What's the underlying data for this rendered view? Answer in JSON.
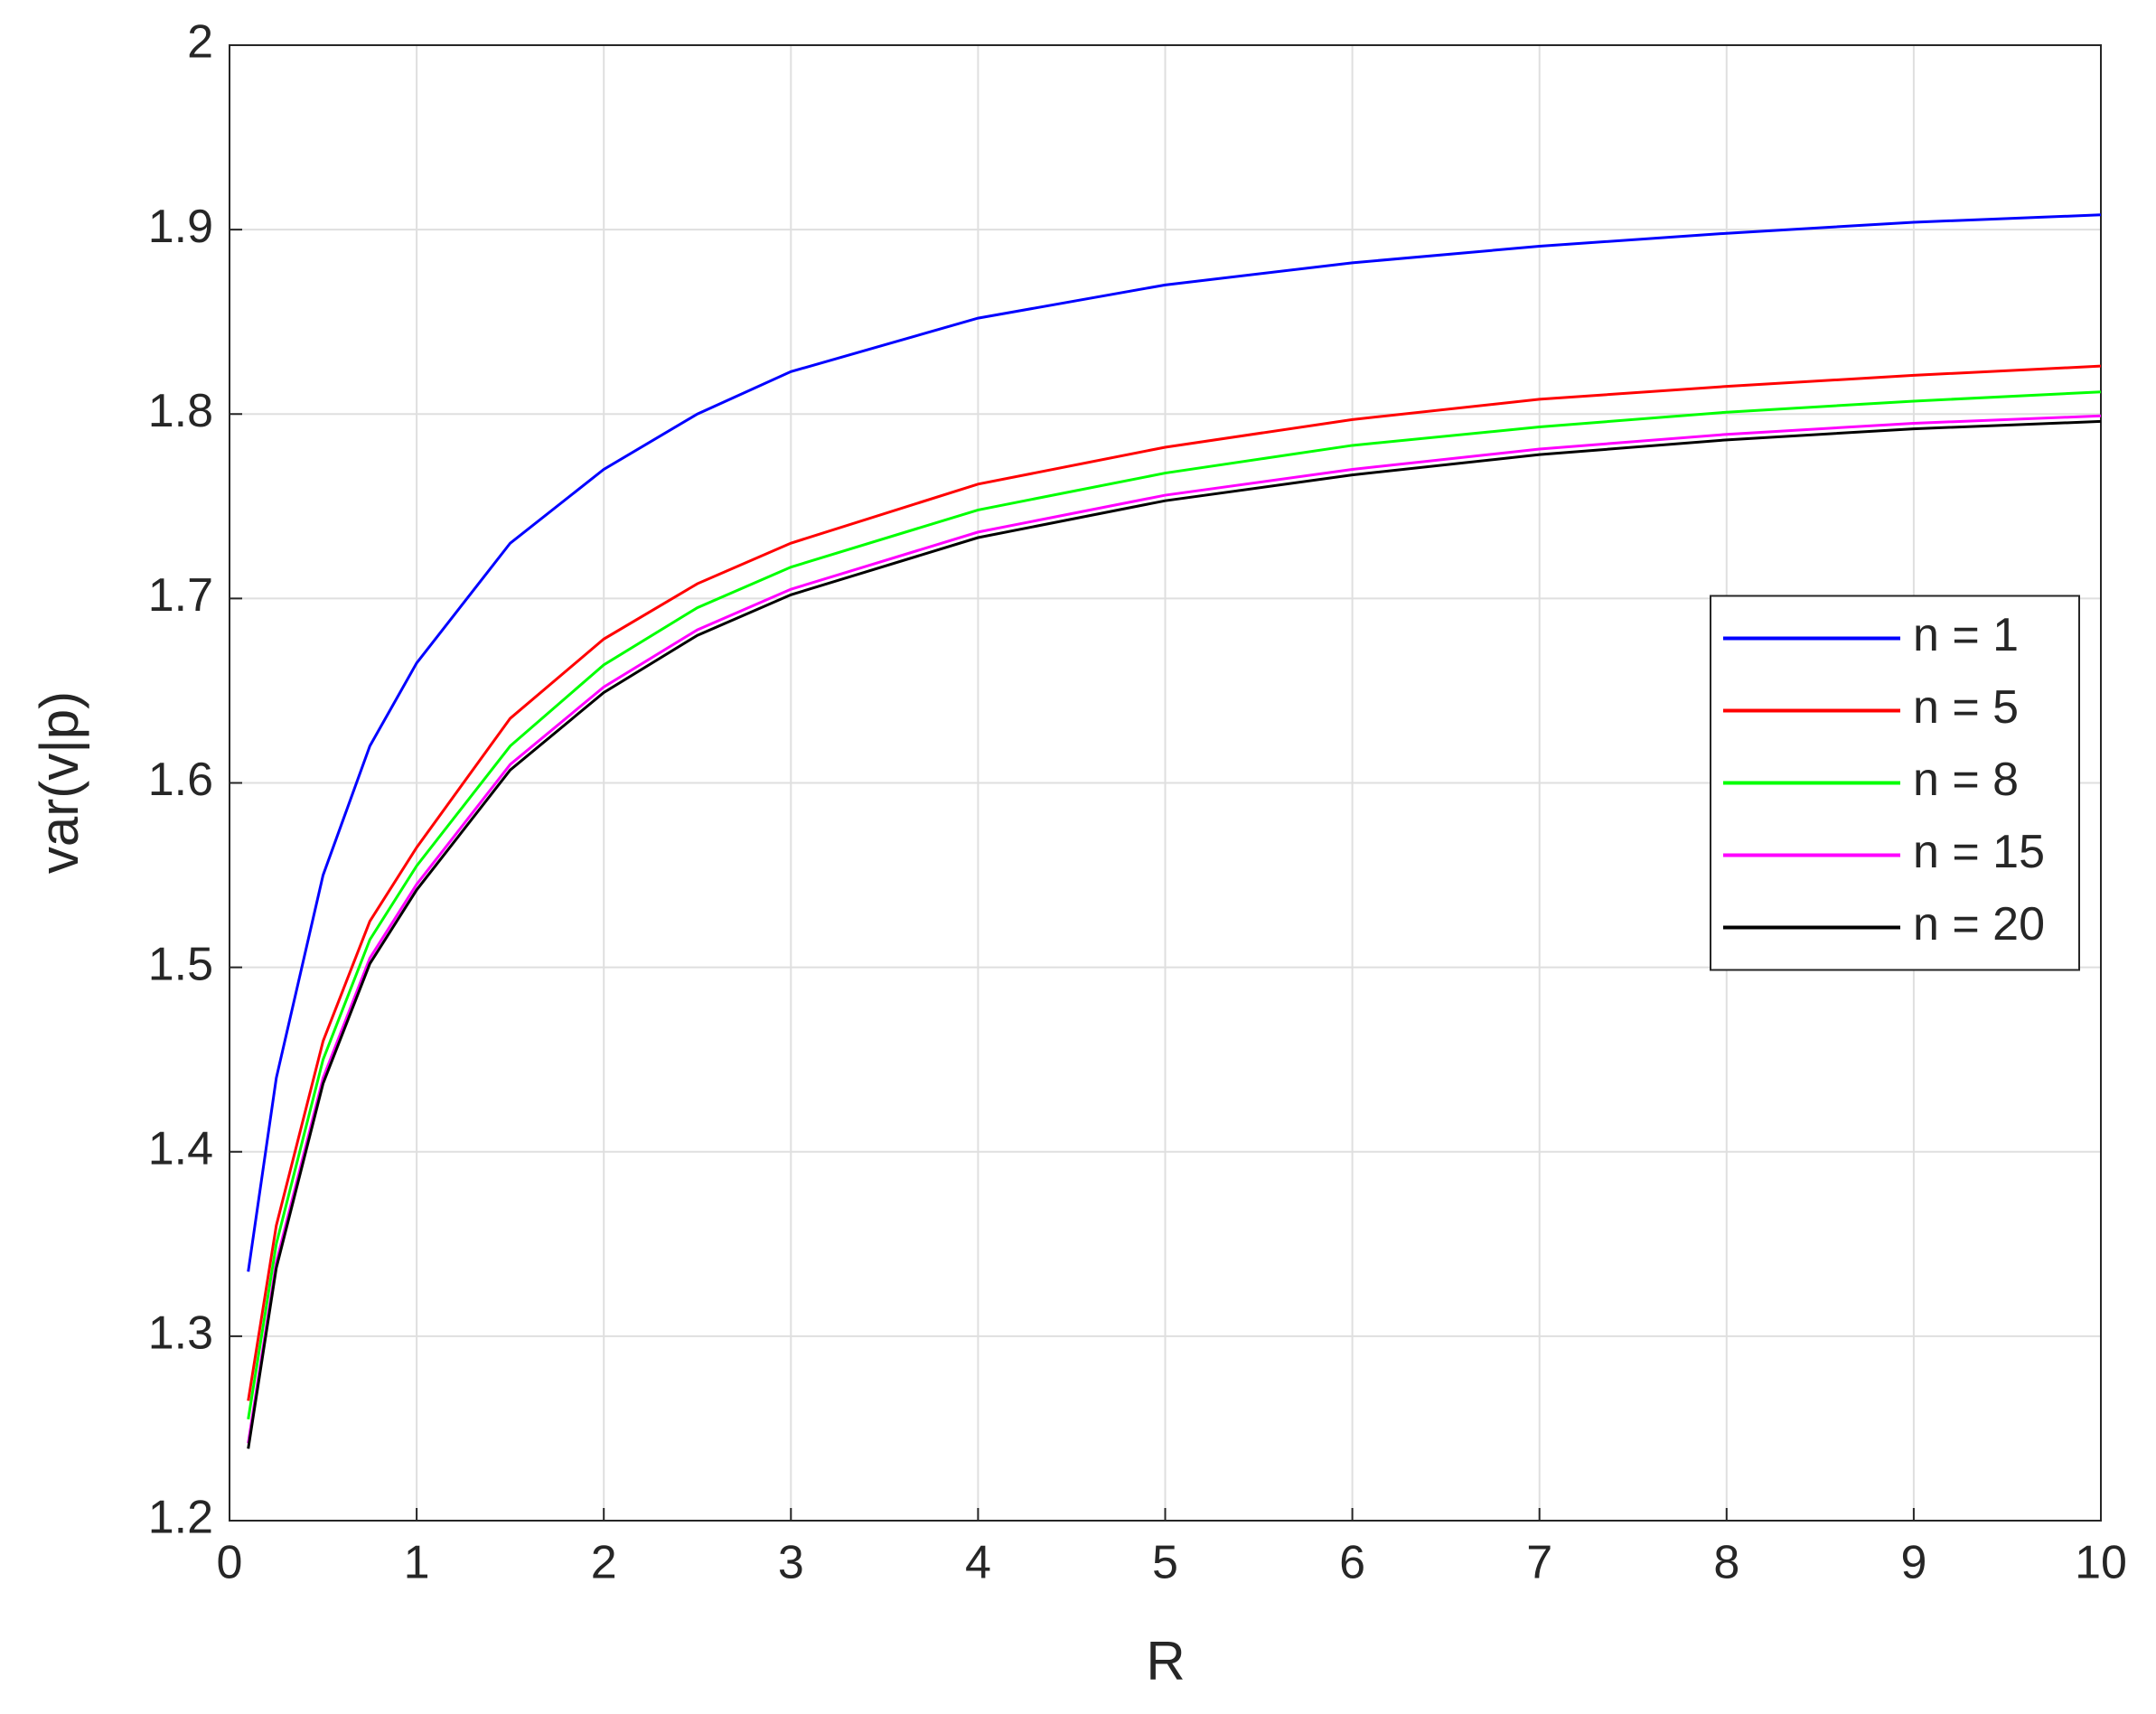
{
  "chart_data": {
    "type": "line",
    "x_label": "R",
    "y_label": "var(v|p)",
    "x": [
      0.1,
      0.25,
      0.5,
      0.75,
      1,
      1.5,
      2,
      2.5,
      3,
      4,
      5,
      6,
      7,
      8,
      9,
      10
    ],
    "series": [
      {
        "name": "n = 1",
        "color": "#0000ff",
        "values": [
          1.335,
          1.44,
          1.55,
          1.62,
          1.665,
          1.73,
          1.77,
          1.8,
          1.823,
          1.852,
          1.87,
          1.882,
          1.891,
          1.898,
          1.904,
          1.908
        ]
      },
      {
        "name": "n = 5",
        "color": "#ff0000",
        "values": [
          1.265,
          1.36,
          1.46,
          1.525,
          1.565,
          1.635,
          1.678,
          1.708,
          1.73,
          1.762,
          1.782,
          1.797,
          1.808,
          1.815,
          1.821,
          1.826
        ]
      },
      {
        "name": "n = 8",
        "color": "#00ff00",
        "values": [
          1.255,
          1.35,
          1.45,
          1.515,
          1.555,
          1.62,
          1.664,
          1.695,
          1.717,
          1.748,
          1.768,
          1.783,
          1.793,
          1.801,
          1.807,
          1.812
        ]
      },
      {
        "name": "n = 15",
        "color": "#ff00ff",
        "values": [
          1.242,
          1.34,
          1.44,
          1.505,
          1.545,
          1.61,
          1.652,
          1.683,
          1.705,
          1.736,
          1.756,
          1.77,
          1.781,
          1.789,
          1.795,
          1.799
        ]
      },
      {
        "name": "n = 20",
        "color": "#000000",
        "values": [
          1.239,
          1.337,
          1.437,
          1.502,
          1.542,
          1.607,
          1.649,
          1.68,
          1.702,
          1.733,
          1.753,
          1.767,
          1.778,
          1.786,
          1.792,
          1.796
        ]
      }
    ],
    "xlim": [
      0,
      10
    ],
    "xticks": [
      0,
      1,
      2,
      3,
      4,
      5,
      6,
      7,
      8,
      9,
      10
    ],
    "ylim": [
      1.2,
      2
    ],
    "yticks": [
      1.2,
      1.3,
      1.4,
      1.5,
      1.6,
      1.7,
      1.8,
      1.9,
      2
    ],
    "grid": true,
    "legend": "east"
  }
}
